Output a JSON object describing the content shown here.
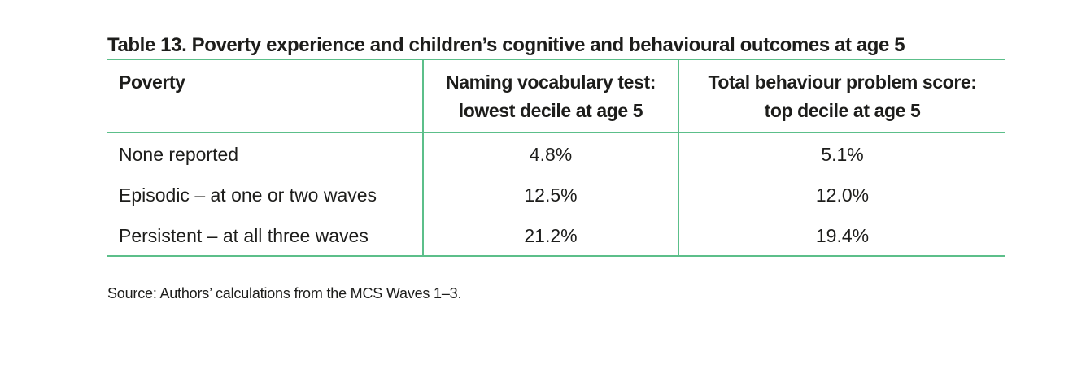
{
  "table": {
    "title": "Table 13. Poverty experience and children’s cognitive and behavioural outcomes at age 5",
    "headers": [
      "Poverty",
      "Naming vocabulary test: lowest decile at age 5",
      "Total behaviour problem score: top decile at age 5"
    ],
    "header_lines": {
      "col2_line1": "Naming vocabulary test:",
      "col2_line2": "lowest decile at age 5",
      "col3_line1": "Total behaviour problem score:",
      "col3_line2": "top decile at age 5"
    },
    "rows": [
      {
        "label": "None reported",
        "vocab": "4.8%",
        "behaviour": "5.1%"
      },
      {
        "label": "Episodic – at one or two waves",
        "vocab": "12.5%",
        "behaviour": "12.0%"
      },
      {
        "label": "Persistent – at all three waves",
        "vocab": "21.2%",
        "behaviour": "19.4%"
      }
    ]
  },
  "source": "Source: Authors’ calculations from the MCS Waves 1–3.",
  "colors": {
    "rule": "#5cbf8a",
    "text": "#1d1d1b"
  }
}
